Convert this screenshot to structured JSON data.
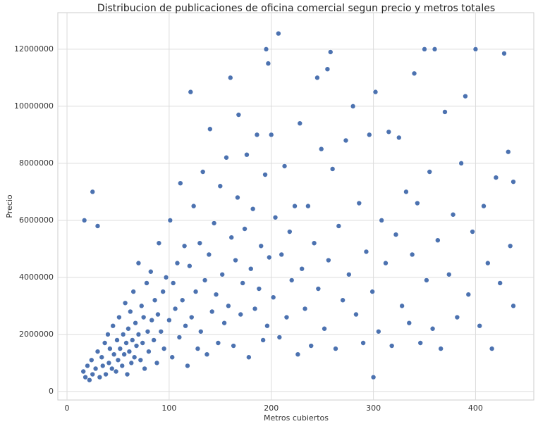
{
  "chart_data": {
    "type": "scatter",
    "title": "Distribucion de publicaciones de oficina comercial segun precio y metros totales",
    "x_label": "Metros cubiertos",
    "y_label": "Precio",
    "color": "#4c72b0",
    "grid": true,
    "xlim": [
      -9,
      457
    ],
    "ylim": [
      -300000,
      13280000
    ],
    "xticks": [
      0,
      100,
      200,
      300,
      400
    ],
    "yticks": [
      0,
      2000000,
      4000000,
      6000000,
      8000000,
      10000000,
      12000000
    ],
    "x": [
      17,
      25,
      30,
      16,
      18,
      20,
      22,
      24,
      25,
      28,
      30,
      32,
      34,
      35,
      37,
      38,
      40,
      41,
      42,
      44,
      45,
      46,
      48,
      49,
      50,
      51,
      52,
      54,
      55,
      56,
      57,
      58,
      59,
      60,
      61,
      62,
      63,
      64,
      65,
      66,
      67,
      68,
      70,
      70,
      72,
      73,
      74,
      75,
      76,
      78,
      79,
      80,
      82,
      83,
      85,
      86,
      88,
      89,
      90,
      92,
      94,
      95,
      97,
      100,
      101,
      103,
      104,
      106,
      108,
      110,
      111,
      113,
      115,
      116,
      118,
      120,
      121,
      122,
      124,
      126,
      128,
      130,
      131,
      133,
      135,
      137,
      139,
      140,
      142,
      144,
      146,
      148,
      150,
      152,
      154,
      156,
      158,
      160,
      161,
      163,
      165,
      167,
      168,
      170,
      172,
      174,
      176,
      178,
      180,
      182,
      184,
      186,
      188,
      190,
      192,
      194,
      196,
      198,
      195,
      197,
      200,
      202,
      204,
      207,
      208,
      210,
      213,
      215,
      218,
      220,
      223,
      226,
      228,
      230,
      233,
      236,
      239,
      242,
      245,
      246,
      249,
      252,
      255,
      256,
      258,
      260,
      263,
      266,
      270,
      273,
      276,
      280,
      283,
      286,
      290,
      293,
      296,
      299,
      300,
      302,
      305,
      308,
      312,
      315,
      318,
      322,
      325,
      328,
      332,
      335,
      338,
      340,
      343,
      346,
      350,
      352,
      355,
      358,
      360,
      363,
      366,
      370,
      374,
      378,
      382,
      386,
      390,
      393,
      397,
      400,
      404,
      408,
      412,
      416,
      420,
      424,
      428,
      432,
      434,
      437,
      437
    ],
    "values": [
      6000000,
      7000000,
      5800000,
      700000,
      500000,
      900000,
      400000,
      1100000,
      600000,
      800000,
      1400000,
      500000,
      1200000,
      900000,
      1700000,
      600000,
      2000000,
      1000000,
      1500000,
      800000,
      2300000,
      1300000,
      700000,
      1800000,
      1100000,
      2600000,
      1500000,
      900000,
      2000000,
      1300000,
      3100000,
      1700000,
      600000,
      2200000,
      1400000,
      2800000,
      1000000,
      1800000,
      3500000,
      1200000,
      2400000,
      1600000,
      4500000,
      2000000,
      1100000,
      3000000,
      1700000,
      2600000,
      800000,
      3800000,
      2100000,
      1400000,
      4200000,
      2500000,
      1800000,
      3200000,
      1000000,
      2700000,
      5200000,
      2100000,
      3500000,
      1500000,
      4000000,
      2500000,
      6000000,
      1200000,
      3800000,
      2900000,
      4500000,
      1900000,
      7300000,
      3200000,
      5100000,
      2300000,
      900000,
      4400000,
      10500000,
      2600000,
      6500000,
      3500000,
      1500000,
      5200000,
      2100000,
      7700000,
      3900000,
      1300000,
      4800000,
      9200000,
      2800000,
      5900000,
      3400000,
      1700000,
      7200000,
      4100000,
      2400000,
      8200000,
      3000000,
      11000000,
      5400000,
      1600000,
      4600000,
      6800000,
      9700000,
      2700000,
      3800000,
      5700000,
      8300000,
      1200000,
      4300000,
      6400000,
      2900000,
      9000000,
      3600000,
      5100000,
      1800000,
      7600000,
      2300000,
      4700000,
      12000000,
      11500000,
      9000000,
      3300000,
      6100000,
      12550000,
      1900000,
      4800000,
      7900000,
      2600000,
      5600000,
      3900000,
      6500000,
      1300000,
      9400000,
      4300000,
      2900000,
      6500000,
      1600000,
      5200000,
      11000000,
      3600000,
      8500000,
      2200000,
      11300000,
      4600000,
      11900000,
      7800000,
      1500000,
      5800000,
      3200000,
      8800000,
      4100000,
      10000000,
      2700000,
      6600000,
      1700000,
      4900000,
      9000000,
      3500000,
      500000,
      10500000,
      2100000,
      6000000,
      4500000,
      9100000,
      1600000,
      5500000,
      8900000,
      3000000,
      7000000,
      2400000,
      4800000,
      11150000,
      6600000,
      1700000,
      12000000,
      3900000,
      7700000,
      2200000,
      12000000,
      5300000,
      1500000,
      9800000,
      4100000,
      6200000,
      2600000,
      8000000,
      10350000,
      3400000,
      5600000,
      12000000,
      2300000,
      6500000,
      4500000,
      1500000,
      7500000,
      3800000,
      11850000,
      8400000,
      5100000,
      7350000,
      3000000
    ]
  }
}
